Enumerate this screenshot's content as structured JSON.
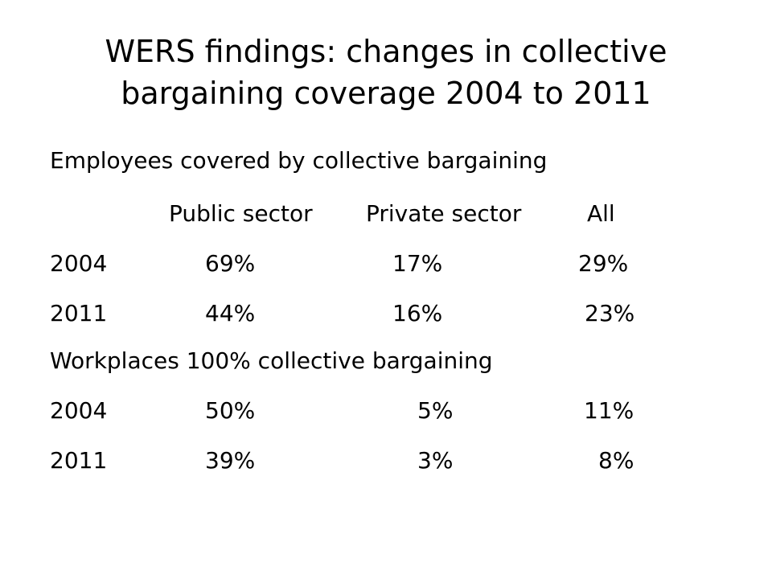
{
  "title": {
    "line1": "WERS findings: changes in collective",
    "line2": "bargaining coverage 2004 to 2011"
  },
  "section1": {
    "heading": "Employees covered by collective bargaining",
    "columns": [
      "Public sector",
      "Private sector",
      "All"
    ],
    "rows": [
      {
        "year": "2004",
        "public": "69%",
        "private": "17%",
        "all": "29%"
      },
      {
        "year": "2011",
        "public": "44%",
        "private": "16%",
        "all": "23%"
      }
    ]
  },
  "section2": {
    "heading": "Workplaces 100% collective bargaining",
    "rows": [
      {
        "year": "2004",
        "public": "50%",
        "private": "5%",
        "all": "11%"
      },
      {
        "year": "2011",
        "public": "39%",
        "private": "3%",
        "all": "8%"
      }
    ]
  }
}
